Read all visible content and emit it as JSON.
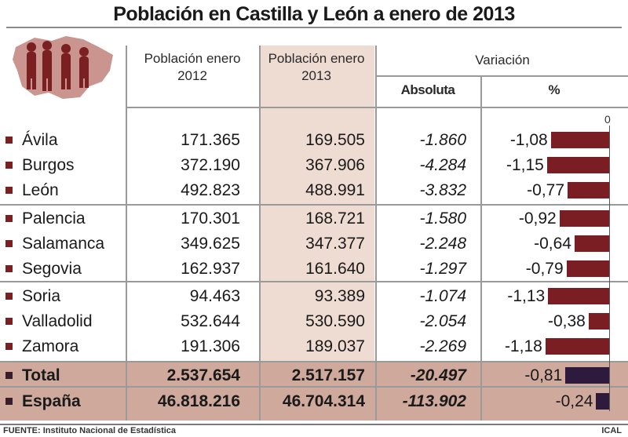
{
  "chart_data": {
    "type": "table",
    "title": "Población en Castilla y León a enero de 2013",
    "headers": {
      "col_2012": "Población enero 2012",
      "col_2013": "Población enero 2013",
      "variacion": "Variación",
      "absoluta": "Absoluta",
      "percent": "%"
    },
    "axis_zero_label": "0",
    "pct_scale_min": -1.25,
    "rows": [
      {
        "name": "Ávila",
        "p2012": "171.365",
        "p2013": "169.505",
        "abs": "-1.860",
        "pct": "-1,08",
        "pct_value": -1.08,
        "group": "normal"
      },
      {
        "name": "Burgos",
        "p2012": "372.190",
        "p2013": "367.906",
        "abs": "-4.284",
        "pct": "-1,15",
        "pct_value": -1.15,
        "group": "normal"
      },
      {
        "name": "León",
        "p2012": "492.823",
        "p2013": "488.991",
        "abs": "-3.832",
        "pct": "-0,77",
        "pct_value": -0.77,
        "group": "normal"
      },
      {
        "name": "Palencia",
        "p2012": "170.301",
        "p2013": "168.721",
        "abs": "-1.580",
        "pct": "-0,92",
        "pct_value": -0.92,
        "group": "normal"
      },
      {
        "name": "Salamanca",
        "p2012": "349.625",
        "p2013": "347.377",
        "abs": "-2.248",
        "pct": "-0,64",
        "pct_value": -0.64,
        "group": "normal"
      },
      {
        "name": "Segovia",
        "p2012": "162.937",
        "p2013": "161.640",
        "abs": "-1.297",
        "pct": "-0,79",
        "pct_value": -0.79,
        "group": "normal"
      },
      {
        "name": "Soria",
        "p2012": "94.463",
        "p2013": "93.389",
        "abs": "-1.074",
        "pct": "-1,13",
        "pct_value": -1.13,
        "group": "normal"
      },
      {
        "name": "Valladolid",
        "p2012": "532.644",
        "p2013": "530.590",
        "abs": "-2.054",
        "pct": "-0,38",
        "pct_value": -0.38,
        "group": "normal"
      },
      {
        "name": "Zamora",
        "p2012": "191.306",
        "p2013": "189.037",
        "abs": "-2.269",
        "pct": "-1,18",
        "pct_value": -1.18,
        "group": "normal"
      },
      {
        "name": "Total",
        "p2012": "2.537.654",
        "p2013": "2.517.157",
        "abs": "-20.497",
        "pct": "-0,81",
        "pct_value": -0.81,
        "group": "total"
      },
      {
        "name": "España",
        "p2012": "46.818.216",
        "p2013": "46.704.314",
        "abs": "-113.902",
        "pct": "-0,24",
        "pct_value": -0.24,
        "group": "total"
      }
    ]
  },
  "footer": {
    "source": "FUENTE: Instituto Nacional de Estadística",
    "agency": "ICAL"
  },
  "colors": {
    "bar_province": "#7b1e24",
    "bar_total": "#2e1a3d",
    "highlight_2013": "#eedbd2",
    "total_band": "#cfa99c"
  },
  "icons": {
    "logo": "castilla-leon-map-figures-icon"
  }
}
